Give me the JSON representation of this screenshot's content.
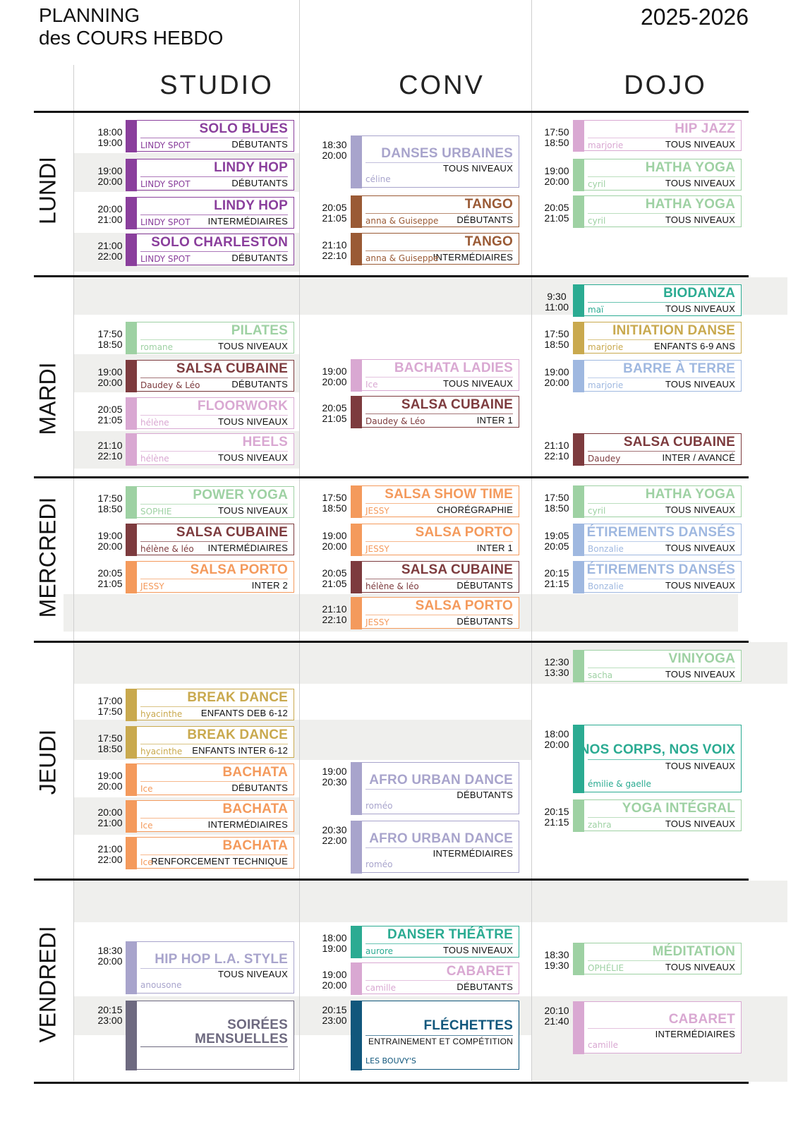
{
  "header": {
    "title_line1": "PLANNING",
    "title_line2": "des COURS HEBDO",
    "season": "2025-2026"
  },
  "rooms": [
    "STUDIO",
    "CONV",
    "DOJO"
  ],
  "days": [
    "LUNDI",
    "MARDI",
    "MERCREDI",
    "JEUDI",
    "VENDREDI"
  ],
  "colors": {
    "purple": "#8a3f9c",
    "grape": "#7a2f78",
    "brown": "#9a5a35",
    "lavender": "#a8a4cc",
    "pink": "#d9a8d2",
    "green": "#9ed1a3",
    "maroon": "#7d3b3e",
    "teal": "#2bab92",
    "gold": "#c9a94e",
    "blue": "#9fb8e0",
    "orange": "#f49a5c",
    "navy": "#11577c",
    "slate": "#6e6a80"
  },
  "classes": [
    {
      "time": "18:00\n19:00",
      "name": "SOLO BLUES",
      "inst": "LINDY SPOT",
      "level": "DÉBUTANTS",
      "color": "#8a3f9c"
    },
    {
      "time": "19:00\n20:00",
      "name": "LINDY HOP",
      "inst": "LINDY SPOT",
      "level": "DÉBUTANTS",
      "color": "#8a3f9c"
    },
    {
      "time": "20:00\n21:00",
      "name": "LINDY HOP",
      "inst": "LINDY SPOT",
      "level": "INTERMÉDIAIRES",
      "color": "#8a3f9c"
    },
    {
      "time": "21:00\n22:00",
      "name": "SOLO CHARLESTON",
      "inst": "LINDY SPOT",
      "level": "DÉBUTANTS",
      "color": "#8a3f9c"
    },
    {
      "time": "18:30\n20:00",
      "name": "DANSES URBAINES",
      "inst": "céline",
      "level": "TOUS NIVEAUX",
      "color": "#a8a4cc"
    },
    {
      "time": "20:05\n21:05",
      "name": "TANGO",
      "inst": "anna & Guiseppe",
      "level": "DÉBUTANTS",
      "color": "#9a5a35"
    },
    {
      "time": "21:10\n22:10",
      "name": "TANGO",
      "inst": "anna & Guiseppe",
      "level": "INTERMÉDIAIRES",
      "color": "#9a5a35"
    },
    {
      "time": "17:50\n18:50",
      "name": "HIP JAZZ",
      "inst": "marjorie",
      "level": "TOUS NIVEAUX",
      "color": "#d9a8d2"
    },
    {
      "time": "19:00\n20:00",
      "name": "HATHA YOGA",
      "inst": "cyril",
      "level": "TOUS NIVEAUX",
      "color": "#9ed1a3"
    },
    {
      "time": "20:05\n21:05",
      "name": "HATHA YOGA",
      "inst": "cyril",
      "level": "TOUS NIVEAUX",
      "color": "#9ed1a3"
    },
    {
      "time": "17:50\n18:50",
      "name": "PILATES",
      "inst": "romane",
      "level": "TOUS NIVEAUX",
      "color": "#9ed1a3"
    },
    {
      "time": "19:00\n20:00",
      "name": "SALSA CUBAINE",
      "inst": "Daudey & Léo",
      "level": "DÉBUTANTS",
      "color": "#7d3b3e"
    },
    {
      "time": "20:05\n21:05",
      "name": "FLOORWORK",
      "inst": "hélène",
      "level": "TOUS NIVEAUX",
      "color": "#d9a8d2"
    },
    {
      "time": "21:10\n22:10",
      "name": "HEELS",
      "inst": "hélène",
      "level": "TOUS NIVEAUX",
      "color": "#d9a8d2"
    },
    {
      "time": "19:00\n20:00",
      "name": "BACHATA LADIES",
      "inst": "Ice",
      "level": "TOUS NIVEAUX",
      "color": "#d9a8d2"
    },
    {
      "time": "20:05\n21:05",
      "name": "SALSA CUBAINE",
      "inst": "Daudey & Léo",
      "level": "INTER 1",
      "color": "#7d3b3e"
    },
    {
      "time": "9:30\n11:00",
      "name": "BIODANZA",
      "inst": "maï",
      "level": "TOUS NIVEAUX",
      "color": "#2bab92"
    },
    {
      "time": "17:50\n18:50",
      "name": "INITIATION DANSE",
      "inst": "marjorie",
      "level": "ENFANTS  6-9 ANS",
      "color": "#c9a94e"
    },
    {
      "time": "19:00\n20:00",
      "name": "BARRE À TERRE",
      "inst": "marjorie",
      "level": "TOUS NIVEAUX",
      "color": "#9fb8e0"
    },
    {
      "time": "21:10\n22:10",
      "name": "SALSA CUBAINE",
      "inst": "Daudey",
      "level": "INTER / AVANCÉ",
      "color": "#7d3b3e"
    },
    {
      "time": "17:50\n18:50",
      "name": "POWER YOGA",
      "inst": "SOPHIE",
      "level": "TOUS NIVEAUX",
      "color": "#9ed1a3"
    },
    {
      "time": "19:00\n20:00",
      "name": "SALSA CUBAINE",
      "inst": "hélène & léo",
      "level": "INTERMÉDIAIRES",
      "color": "#7d3b3e"
    },
    {
      "time": "20:05\n21:05",
      "name": "SALSA PORTO",
      "inst": "JESSY",
      "level": "INTER 2",
      "color": "#f49a5c"
    },
    {
      "time": "17:50\n18:50",
      "name": "SALSA SHOW TIME",
      "inst": "JESSY",
      "level": "CHORÉGRAPHIE",
      "color": "#f49a5c"
    },
    {
      "time": "19:00\n20:00",
      "name": "SALSA PORTO",
      "inst": "JESSY",
      "level": "INTER 1",
      "color": "#f49a5c"
    },
    {
      "time": "20:05\n21:05",
      "name": "SALSA CUBAINE",
      "inst": "hélène & léo",
      "level": "DÉBUTANTS",
      "color": "#7d3b3e"
    },
    {
      "time": "21:10\n22:10",
      "name": "SALSA PORTO",
      "inst": "JESSY",
      "level": "DÉBUTANTS",
      "color": "#f49a5c"
    },
    {
      "time": "17:50\n18:50",
      "name": "HATHA YOGA",
      "inst": "cyril",
      "level": "TOUS NIVEAUX",
      "color": "#9ed1a3"
    },
    {
      "time": "19:05\n20:05",
      "name": "ÉTIREMENTS DANSÉS",
      "inst": "Bonzalie",
      "level": "TOUS NIVEAUX",
      "color": "#9fb8e0"
    },
    {
      "time": "20:15\n21:15",
      "name": "ÉTIREMENTS DANSÉS",
      "inst": "Bonzalie",
      "level": "TOUS NIVEAUX",
      "color": "#9fb8e0"
    },
    {
      "time": "17:00\n17:50",
      "name": "BREAK DANCE",
      "inst": "hyacinthe",
      "level": "ENFANTS DEB  6-12",
      "color": "#c9a94e"
    },
    {
      "time": "17:50\n18:50",
      "name": "BREAK DANCE",
      "inst": "hyacinthe",
      "level": "ENFANTS INTER  6-12",
      "color": "#c9a94e"
    },
    {
      "time": "19:00\n20:00",
      "name": "BACHATA",
      "inst": "Ice",
      "level": "DÉBUTANTS",
      "color": "#f49a5c"
    },
    {
      "time": "20:00\n21:00",
      "name": "BACHATA",
      "inst": "Ice",
      "level": "INTERMÉDIAIRES",
      "color": "#f49a5c"
    },
    {
      "time": "21:00\n22:00",
      "name": "BACHATA",
      "inst": "Ice",
      "level": "RENFORCEMENT TECHNIQUE",
      "color": "#f49a5c"
    },
    {
      "time": "19:00\n20:30",
      "name": "AFRO URBAN DANCE",
      "inst": "roméo",
      "level": "DÉBUTANTS",
      "color": "#a8a4cc"
    },
    {
      "time": "20:30\n22:00",
      "name": "AFRO URBAN DANCE",
      "inst": "roméo",
      "level": "INTERMÉDIAIRES",
      "color": "#a8a4cc"
    },
    {
      "time": "12:30\n13:30",
      "name": "VINIYOGA",
      "inst": "sacha",
      "level": "TOUS NIVEAUX",
      "color": "#9ed1a3"
    },
    {
      "time": "18:00\n20:00",
      "name": "NOS CORPS, NOS VOIX",
      "inst": "émilie & gaelle",
      "level": "TOUS NIVEAUX",
      "color": "#2bab92"
    },
    {
      "time": "20:15\n21:15",
      "name": "YOGA INTÉGRAL",
      "inst": "zahra",
      "level": "TOUS NIVEAUX",
      "color": "#9ed1a3"
    },
    {
      "time": "18:30\n20:00",
      "name": "HIP HOP L.A. STYLE",
      "inst": "anousone",
      "level": "TOUS NIVEAUX",
      "color": "#a8a4cc"
    },
    {
      "time": "20:15\n23:00",
      "name": "SOIRÉES\nMENSUELLES",
      "inst": "",
      "level": "",
      "color": "#6e6a80"
    },
    {
      "time": "18:00\n19:00",
      "name": "DANSER THÉÂTRE",
      "inst": "aurore",
      "level": "TOUS NIVEAUX",
      "color": "#2bab92"
    },
    {
      "time": "19:00\n20:00",
      "name": "CABARET",
      "inst": "camille",
      "level": "DÉBUTANTS",
      "color": "#d9a8d2"
    },
    {
      "time": "20:15\n23:00",
      "name": "FLÉCHETTES",
      "inst": "LES BOUVY'S",
      "level": "ENTRAINEMENT  ET  COMPÉTITION",
      "color": "#11577c"
    },
    {
      "time": "18:30\n19:30",
      "name": "MÉDITATION",
      "inst": "OPHÉLIE",
      "level": "TOUS NIVEAUX",
      "color": "#9ed1a3"
    },
    {
      "time": "20:10\n21:40",
      "name": "CABARET",
      "inst": "camille",
      "level": "INTERMÉDIAIRES",
      "color": "#d9a8d2"
    }
  ]
}
